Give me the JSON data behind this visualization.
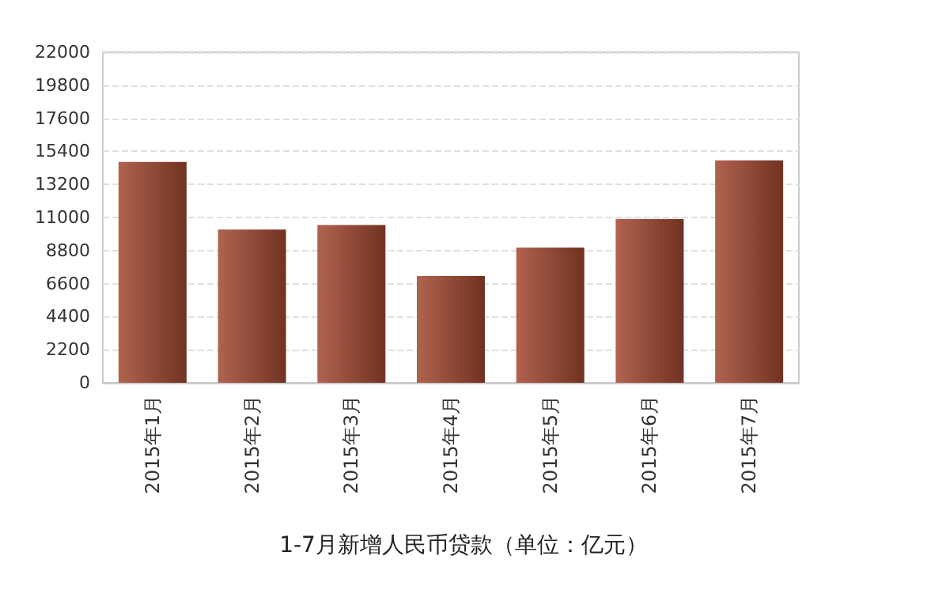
{
  "chart_data": {
    "type": "bar",
    "title": "1-7月新增人民币贷款（单位：亿元）",
    "categories": [
      "2015年1月",
      "2015年2月",
      "2015年3月",
      "2015年4月",
      "2015年5月",
      "2015年6月",
      "2015年7月"
    ],
    "values": [
      14700,
      10200,
      10500,
      7100,
      9000,
      10900,
      14800
    ],
    "color": "#a24830",
    "ylim": [
      0,
      22000
    ],
    "yticks": [
      0,
      2200,
      4400,
      6600,
      8800,
      11000,
      13200,
      15400,
      17600,
      19800,
      22000
    ],
    "grid": "y"
  }
}
